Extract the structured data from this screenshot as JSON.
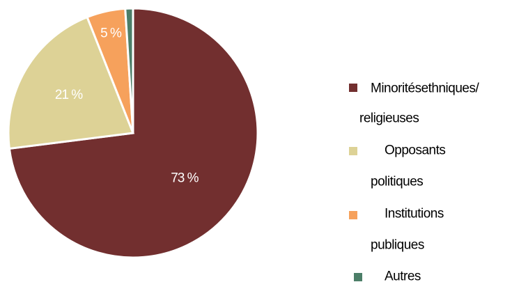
{
  "chart_data": {
    "type": "pie",
    "title": "",
    "start_angle_deg": 0,
    "direction": "clockwise",
    "slices": [
      {
        "name": "Minorités ethniques/ religieuses",
        "value": 73,
        "label": "73 %",
        "color": "#722f2f",
        "legend_lines": [
          "Minoritésethniques/",
          "religieuses"
        ]
      },
      {
        "name": "Opposants politiques",
        "value": 21,
        "label": "21 %",
        "color": "#ddd296",
        "legend_lines": [
          "Opposants",
          "politiques"
        ]
      },
      {
        "name": "Institutions publiques",
        "value": 5,
        "label": "5 %",
        "color": "#f6a15c",
        "legend_lines": [
          "Institutions",
          "publiques"
        ]
      },
      {
        "name": "Autres",
        "value": 1,
        "label": "",
        "color": "#4c7e68",
        "legend_lines": [
          "Autres"
        ]
      }
    ],
    "legend_position": "right"
  }
}
